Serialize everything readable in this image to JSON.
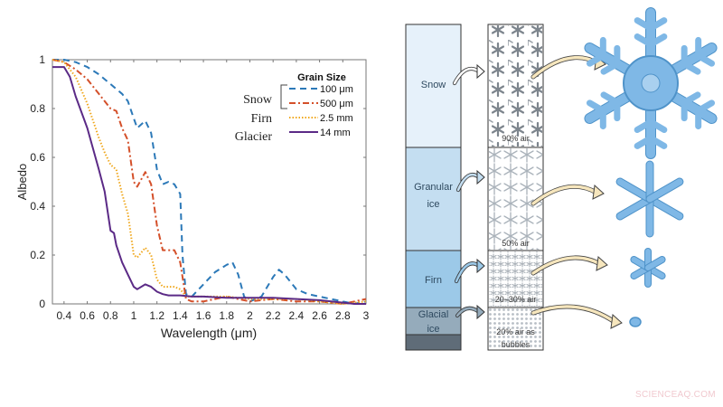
{
  "chart_data": {
    "type": "line",
    "title": "",
    "xlabel": "Wavelength (μm)",
    "ylabel": "Albedo",
    "xlim": [
      0.3,
      3.0
    ],
    "ylim": [
      0,
      1
    ],
    "xticks": [
      "0.4",
      "0.6",
      "0.8",
      "1",
      "1.2",
      "1.4",
      "1.6",
      "1.8",
      "2",
      "2.2",
      "2.4",
      "2.6",
      "2.8",
      "3"
    ],
    "yticks": [
      "0",
      "0.2",
      "0.4",
      "0.6",
      "0.8",
      "1"
    ],
    "grid": false,
    "legend": {
      "title": "Grain Size",
      "position": "upper right",
      "group_labels": [
        "Snow",
        "Firn",
        "Glacier"
      ],
      "entries": [
        "100 μm",
        "500 μm",
        "2.5 mm",
        "14 mm"
      ]
    },
    "series": [
      {
        "name": "Snow 100 μm",
        "style": "dashed",
        "color": "#2c79b8",
        "x": [
          0.3,
          0.4,
          0.5,
          0.6,
          0.7,
          0.8,
          0.9,
          0.95,
          1.0,
          1.03,
          1.1,
          1.15,
          1.2,
          1.25,
          1.3,
          1.35,
          1.4,
          1.42,
          1.45,
          1.5,
          1.6,
          1.7,
          1.8,
          1.85,
          1.9,
          1.95,
          2.0,
          2.1,
          2.2,
          2.25,
          2.3,
          2.4,
          2.5,
          2.6,
          2.7,
          2.8,
          2.9,
          3.0
        ],
        "y": [
          1.0,
          1.0,
          0.99,
          0.97,
          0.94,
          0.9,
          0.86,
          0.83,
          0.76,
          0.72,
          0.75,
          0.7,
          0.55,
          0.49,
          0.5,
          0.49,
          0.45,
          0.2,
          0.04,
          0.03,
          0.08,
          0.13,
          0.16,
          0.17,
          0.12,
          0.03,
          0.01,
          0.03,
          0.11,
          0.14,
          0.12,
          0.06,
          0.04,
          0.03,
          0.02,
          0.01,
          0.0,
          0.01
        ]
      },
      {
        "name": "Snow 500 μm",
        "style": "dashdot",
        "color": "#d4502a",
        "x": [
          0.3,
          0.4,
          0.5,
          0.6,
          0.7,
          0.8,
          0.85,
          0.9,
          0.95,
          1.0,
          1.03,
          1.1,
          1.15,
          1.2,
          1.25,
          1.3,
          1.35,
          1.4,
          1.45,
          1.5,
          1.6,
          1.7,
          1.8,
          1.9,
          2.0,
          2.2,
          2.4,
          2.6,
          2.8,
          3.0
        ],
        "y": [
          1.0,
          0.99,
          0.96,
          0.92,
          0.86,
          0.8,
          0.79,
          0.72,
          0.67,
          0.5,
          0.48,
          0.54,
          0.49,
          0.32,
          0.22,
          0.22,
          0.22,
          0.17,
          0.02,
          0.01,
          0.01,
          0.02,
          0.03,
          0.02,
          0.01,
          0.02,
          0.01,
          0.01,
          0.0,
          0.02
        ]
      },
      {
        "name": "Firn 2.5 mm",
        "style": "dotted",
        "color": "#f0a81e",
        "x": [
          0.3,
          0.4,
          0.5,
          0.6,
          0.7,
          0.75,
          0.8,
          0.85,
          0.9,
          0.95,
          1.0,
          1.03,
          1.1,
          1.15,
          1.2,
          1.25,
          1.3,
          1.35,
          1.4,
          1.45,
          1.6,
          1.8,
          2.0,
          2.2,
          2.4,
          2.6,
          2.8,
          3.0
        ],
        "y": [
          1.0,
          0.99,
          0.93,
          0.82,
          0.68,
          0.62,
          0.57,
          0.55,
          0.45,
          0.37,
          0.2,
          0.19,
          0.23,
          0.2,
          0.1,
          0.07,
          0.07,
          0.07,
          0.06,
          0.03,
          0.03,
          0.03,
          0.02,
          0.02,
          0.02,
          0.01,
          0.0,
          0.01
        ]
      },
      {
        "name": "Glacier 14 mm",
        "style": "solid",
        "color": "#5b2a86",
        "x": [
          0.3,
          0.35,
          0.4,
          0.45,
          0.5,
          0.6,
          0.7,
          0.75,
          0.8,
          0.83,
          0.85,
          0.9,
          0.95,
          1.0,
          1.03,
          1.1,
          1.15,
          1.2,
          1.25,
          1.3,
          1.4,
          1.5,
          1.6,
          1.8,
          2.0,
          2.2,
          2.4,
          2.6,
          2.7,
          2.8,
          2.9,
          3.0
        ],
        "y": [
          0.97,
          0.97,
          0.97,
          0.93,
          0.85,
          0.72,
          0.55,
          0.46,
          0.3,
          0.29,
          0.24,
          0.17,
          0.12,
          0.07,
          0.06,
          0.08,
          0.07,
          0.05,
          0.04,
          0.035,
          0.035,
          0.03,
          0.03,
          0.025,
          0.025,
          0.025,
          0.02,
          0.015,
          0.01,
          0.005,
          0.0,
          0.0
        ]
      }
    ]
  },
  "diagram": {
    "layers": [
      {
        "label_lines": [
          "Snow"
        ],
        "air_text": [
          "90% air"
        ],
        "fill": "#e6f1fa"
      },
      {
        "label_lines": [
          "Granular",
          "ice"
        ],
        "air_text": [
          "50% air"
        ],
        "fill": "#c4def1"
      },
      {
        "label_lines": [
          "Firn"
        ],
        "air_text": [
          "20–30% air"
        ],
        "fill": "#9cc9e8"
      },
      {
        "label_lines": [
          "Glacial",
          "ice"
        ],
        "air_text": [
          "20% air as",
          "bubbles"
        ],
        "fill": "#95abbb"
      }
    ],
    "bottom_fill": "#5f6c78",
    "crystal_color": "#7fb8e6"
  },
  "watermark": "SCIENCEAQ.COM"
}
